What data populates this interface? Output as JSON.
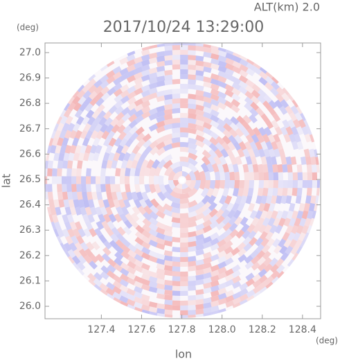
{
  "chart_data": {
    "type": "radar",
    "title": "2017/10/24 13:29:00",
    "subtitle": "ALT(km) 2.0",
    "x_label": "lon",
    "y_label": "lat",
    "x_unit": "(deg)",
    "y_unit": "(deg)",
    "xlim": [
      127.12,
      128.49
    ],
    "ylim": [
      25.951,
      27.038
    ],
    "xticks": [
      127.4,
      127.6,
      127.8,
      {
        "value": 128,
        "label": "128.0"
      },
      128.2,
      128.4
    ],
    "yticks": [
      {
        "value": 26,
        "label": "26.0"
      },
      26.1,
      26.2,
      26.3,
      26.4,
      26.5,
      26.6,
      26.7,
      26.8,
      26.9,
      {
        "value": 27,
        "label": "27.0"
      }
    ],
    "colors": [
      "#f08c8c",
      "#9a9af0"
    ]
  }
}
